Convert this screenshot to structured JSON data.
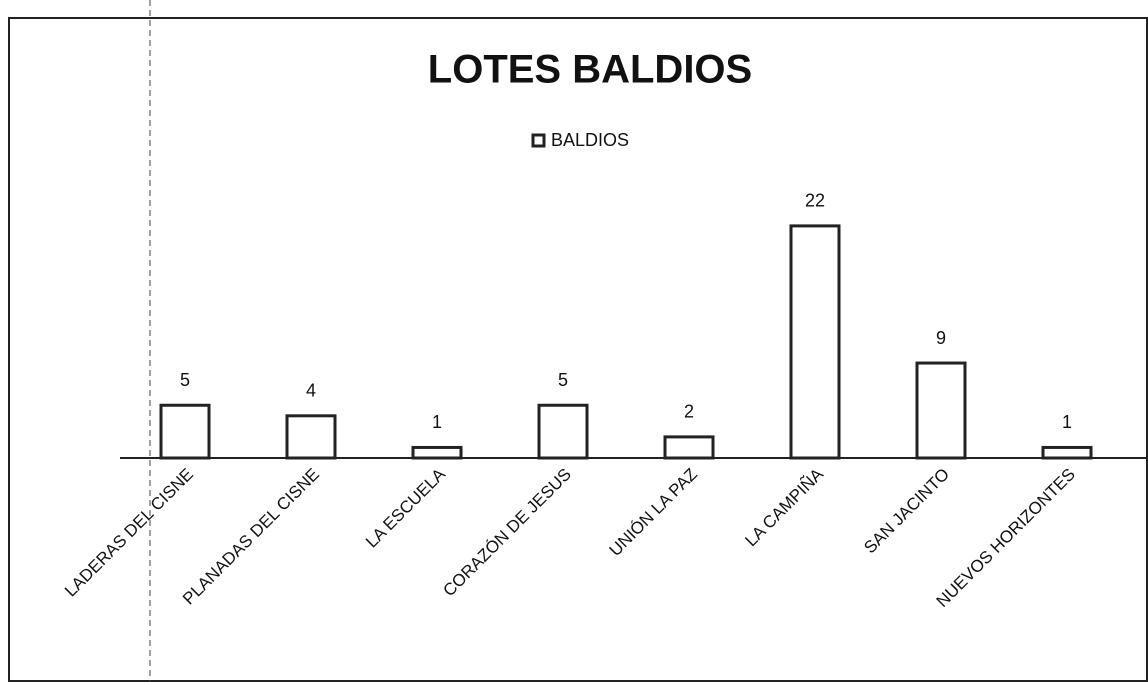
{
  "chart_data": {
    "type": "bar",
    "title": "LOTES BALDIOS",
    "categories": [
      "LADERAS DEL CISNE",
      "PLANADAS DEL CISNE",
      "LA ESCUELA",
      "CORAZÓN DE JESUS",
      "UNIÓN LA PAZ",
      "LA CAMPIÑA",
      "SAN JACINTO",
      "NUEVOS HORIZONTES"
    ],
    "series": [
      {
        "name": "BALDIOS",
        "color": "#ffffff",
        "values": [
          5,
          4,
          1,
          5,
          2,
          22,
          9,
          1
        ]
      }
    ],
    "legend": "top"
  }
}
